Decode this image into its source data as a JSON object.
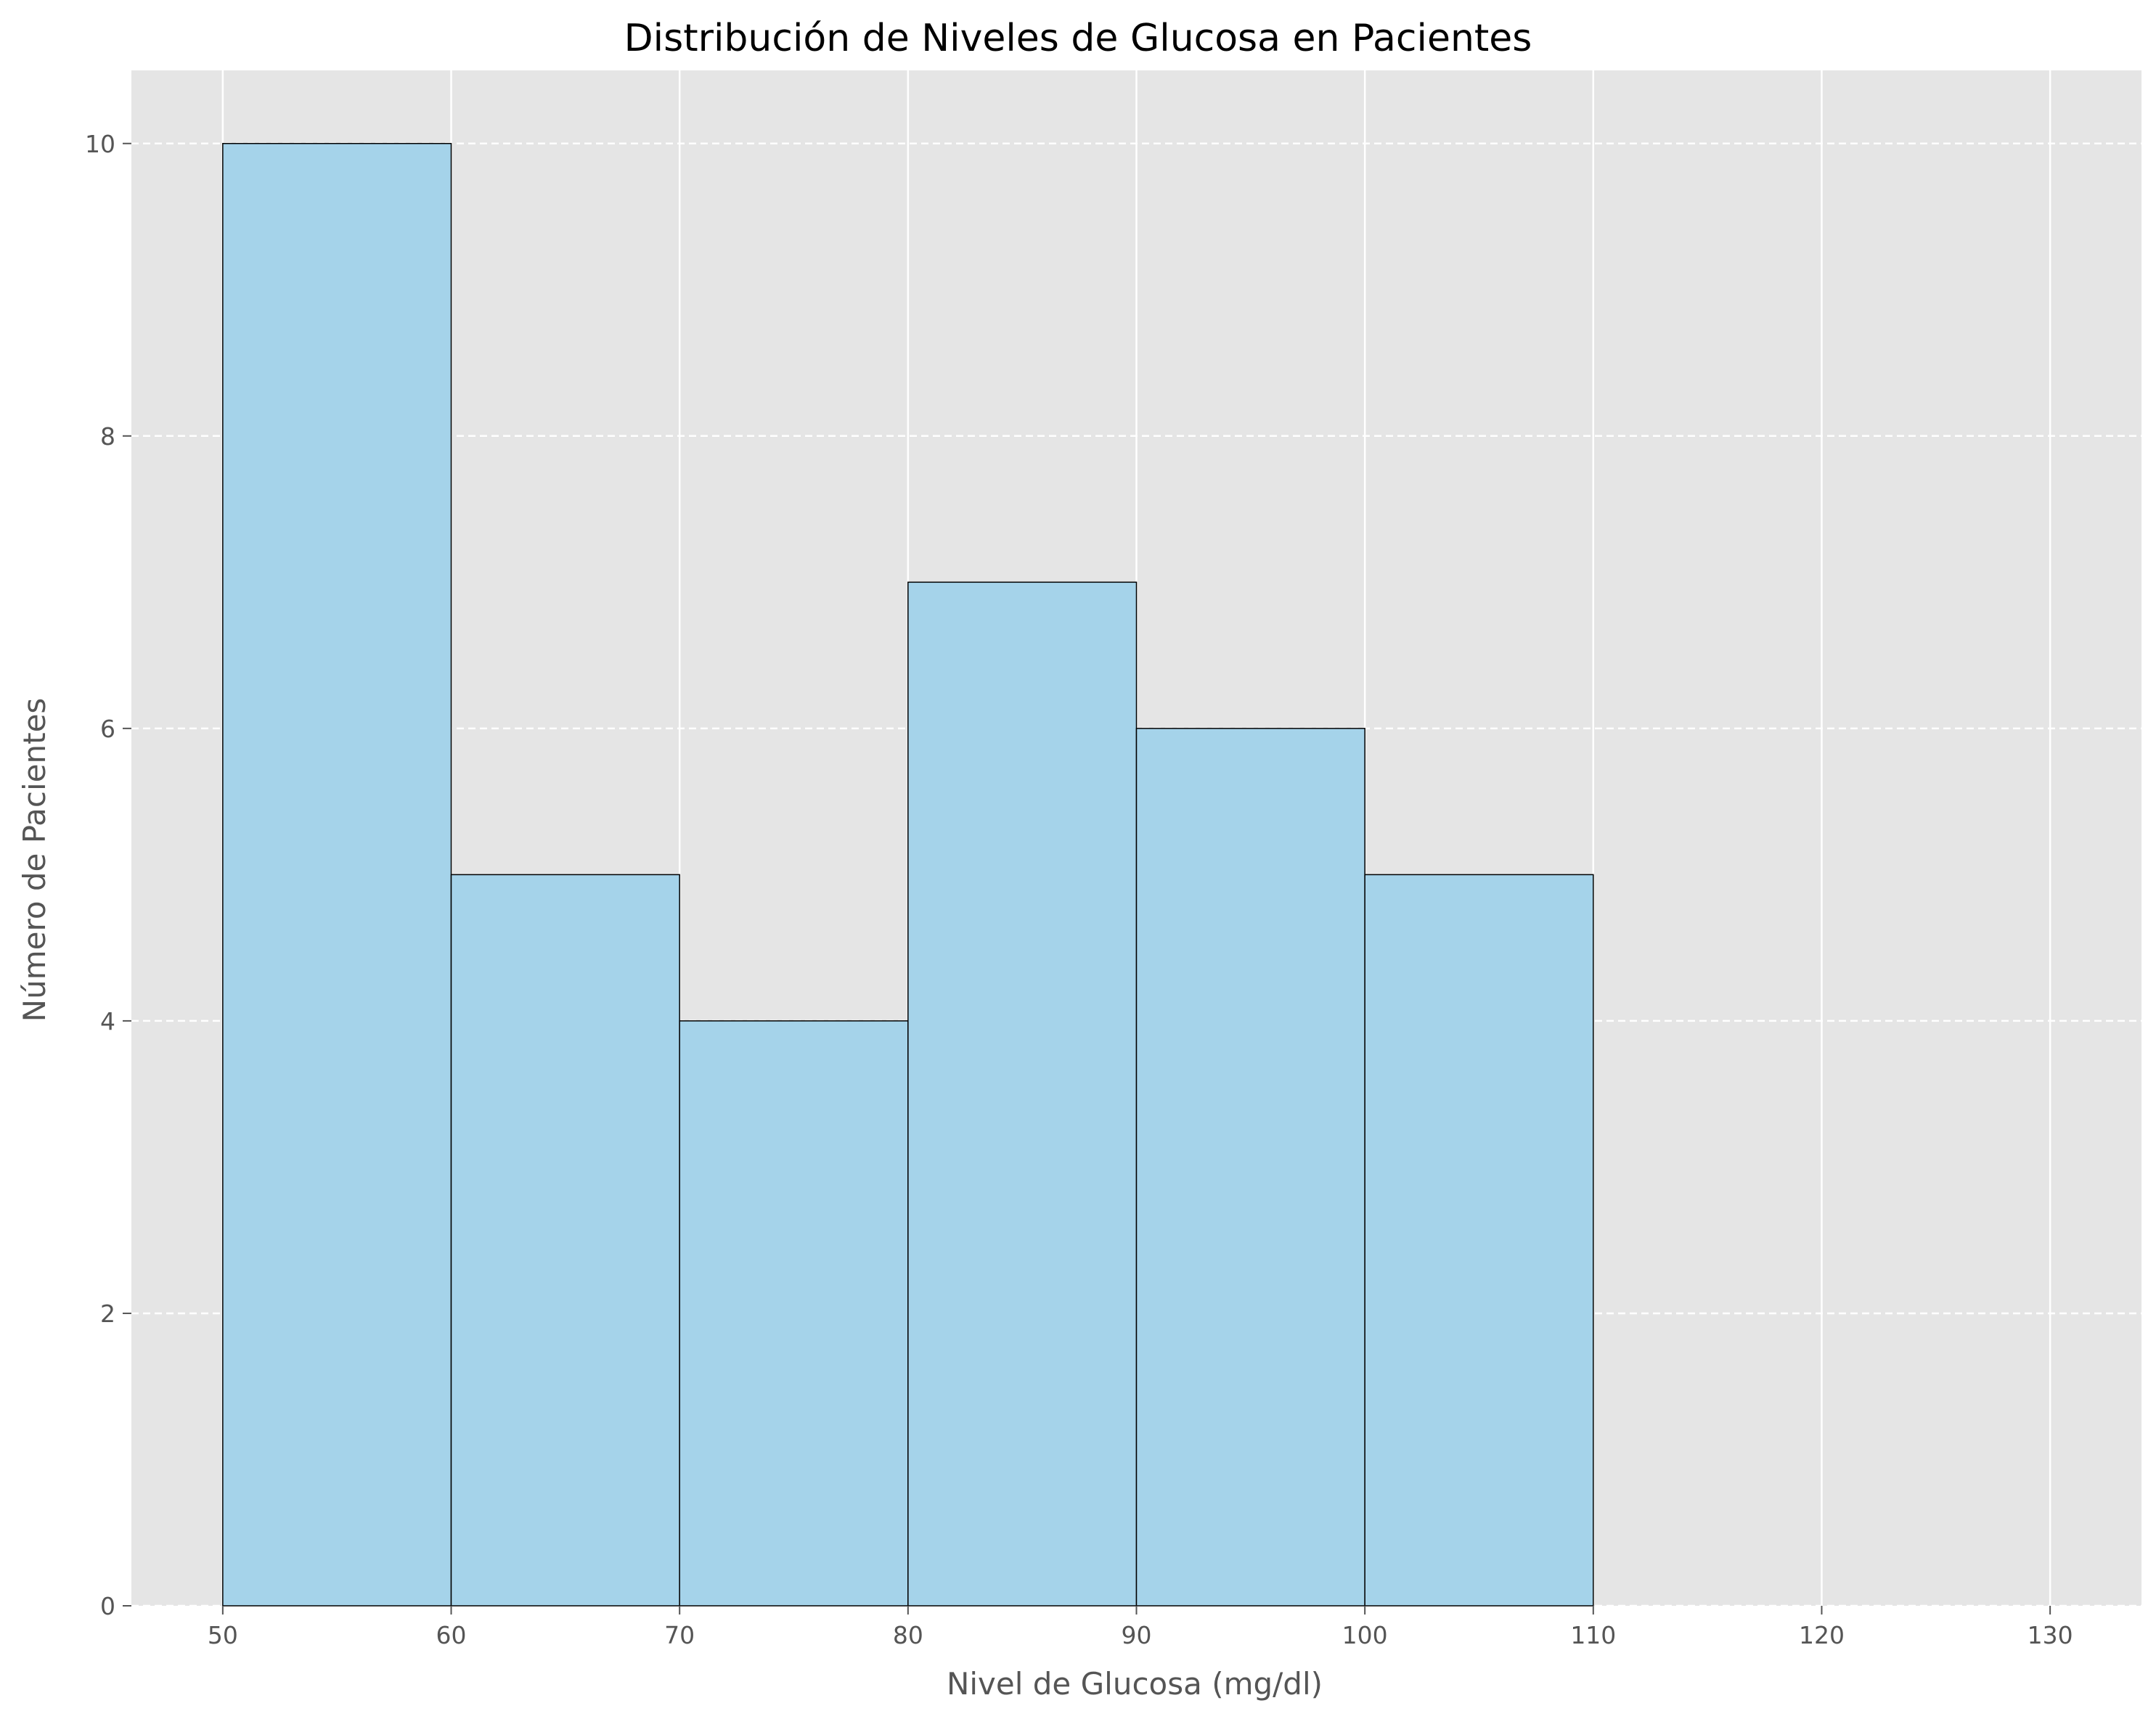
{
  "chart_data": {
    "type": "bar",
    "title": "Distribución de Niveles de Glucosa en Pacientes",
    "xlabel": "Nivel de Glucosa (mg/dl)",
    "ylabel": "Número de Pacientes",
    "bins": [
      {
        "start": 50,
        "end": 60,
        "count": 10
      },
      {
        "start": 60,
        "end": 70,
        "count": 5
      },
      {
        "start": 70,
        "end": 80,
        "count": 4
      },
      {
        "start": 80,
        "end": 90,
        "count": 7
      },
      {
        "start": 90,
        "end": 100,
        "count": 6
      },
      {
        "start": 100,
        "end": 110,
        "count": 5
      }
    ],
    "xlim": [
      46,
      134
    ],
    "ylim": [
      0,
      10.5
    ],
    "xticks": [
      50,
      60,
      70,
      80,
      90,
      100,
      110,
      120,
      130
    ],
    "yticks": [
      0,
      2,
      4,
      6,
      8,
      10
    ],
    "grid": "on (solid vertical, dashed horizontal)",
    "colors": {
      "plot_background": "#e5e5e5",
      "bar_fill": "#a5d3ea",
      "bar_edge": "#000000",
      "grid": "#ffffff"
    }
  }
}
